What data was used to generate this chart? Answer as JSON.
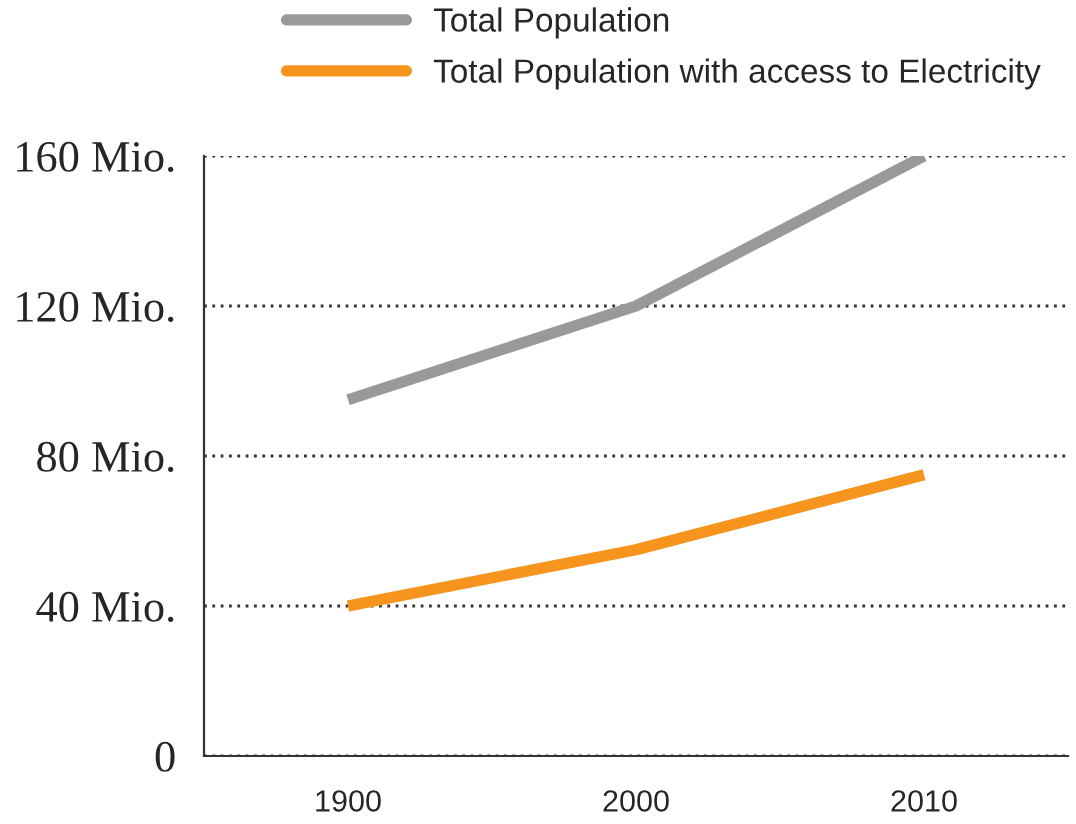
{
  "chart_data": {
    "type": "line",
    "categories": [
      "1900",
      "2000",
      "2010"
    ],
    "series": [
      {
        "name": "Total Population",
        "color": "#999999",
        "values": [
          95,
          120,
          160
        ]
      },
      {
        "name": "Total Population with access to Electricity",
        "color": "#f7941d",
        "values": [
          40,
          55,
          75
        ]
      }
    ],
    "ylim": [
      0,
      160
    ],
    "yticks": [
      0,
      {
        "value": 40,
        "label": "40 Mio."
      },
      {
        "value": 80,
        "label": "80 Mio."
      },
      {
        "value": 120,
        "label": "120 Mio."
      },
      {
        "value": 160,
        "label": "160 Mio."
      }
    ],
    "grid": "y",
    "legend": "top",
    "marker": "none",
    "line_style": "solid"
  }
}
